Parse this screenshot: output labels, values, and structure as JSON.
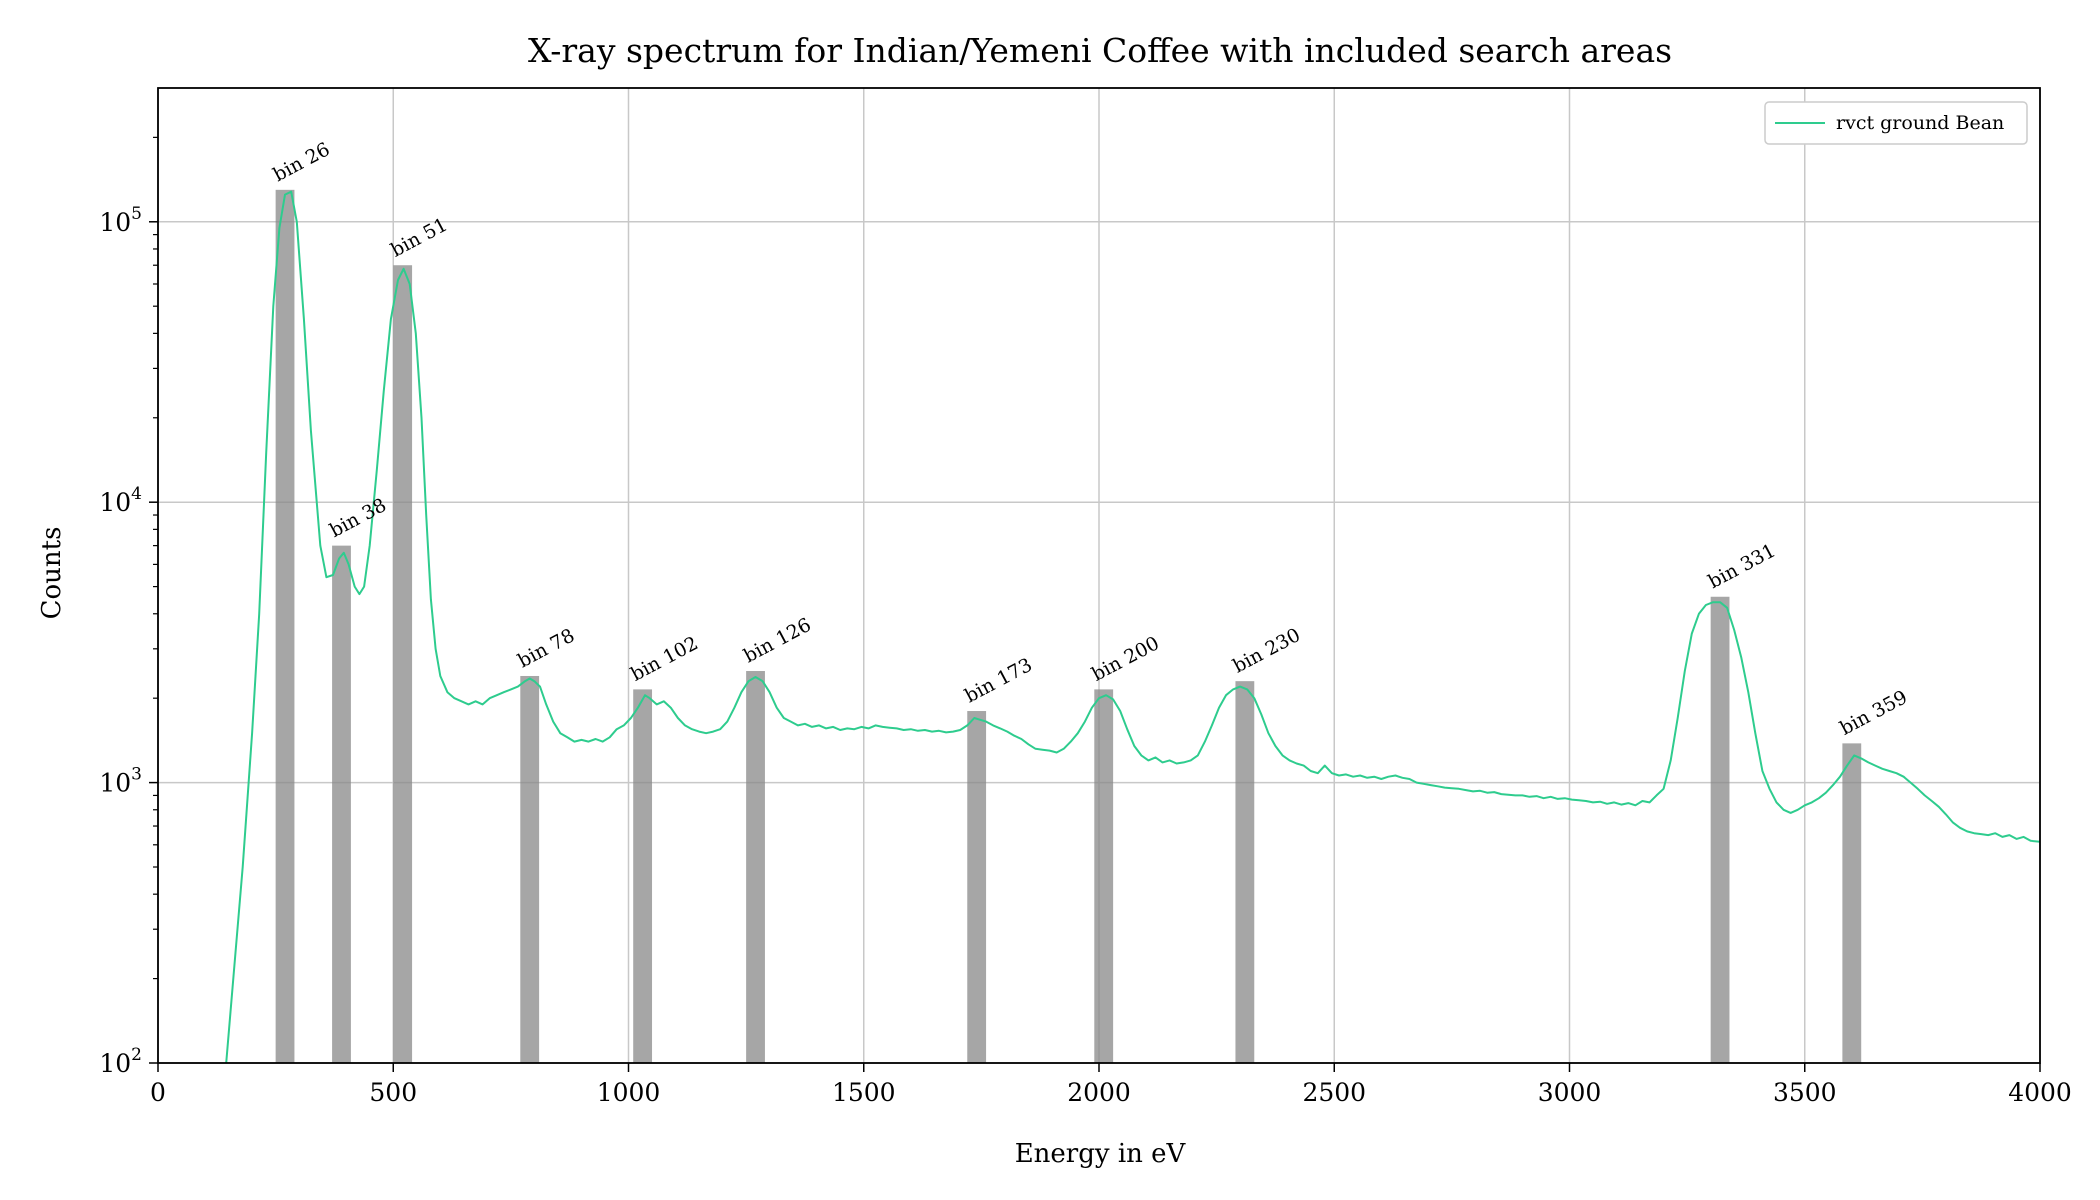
{
  "chart_data": {
    "type": "line",
    "title": "X-ray spectrum for Indian/Yemeni Coffee with included search areas",
    "xlabel": "Energy in eV",
    "ylabel": "Counts",
    "xlim": [
      0,
      4000
    ],
    "ylim": [
      100,
      300000
    ],
    "yscale": "log",
    "grid": true,
    "legend_position": "top-right",
    "x_ticks": [
      0,
      500,
      1000,
      1500,
      2000,
      2500,
      3000,
      3500,
      4000
    ],
    "y_ticks": [
      {
        "value": 100,
        "base": "10",
        "exp": "2"
      },
      {
        "value": 1000,
        "base": "10",
        "exp": "3"
      },
      {
        "value": 10000,
        "base": "10",
        "exp": "4"
      },
      {
        "value": 100000,
        "base": "10",
        "exp": "5"
      }
    ],
    "series": [
      {
        "name": "rvct ground Bean",
        "color": "#2ecc8e",
        "points": [
          [
            145,
            100
          ],
          [
            160,
            200
          ],
          [
            180,
            500
          ],
          [
            200,
            1500
          ],
          [
            215,
            4000
          ],
          [
            230,
            15000
          ],
          [
            245,
            50000
          ],
          [
            258,
            95000
          ],
          [
            270,
            125000
          ],
          [
            283,
            128000
          ],
          [
            295,
            100000
          ],
          [
            310,
            45000
          ],
          [
            325,
            18000
          ],
          [
            345,
            7000
          ],
          [
            358,
            5400
          ],
          [
            372,
            5500
          ],
          [
            385,
            6300
          ],
          [
            395,
            6600
          ],
          [
            405,
            6000
          ],
          [
            418,
            5000
          ],
          [
            428,
            4700
          ],
          [
            438,
            5000
          ],
          [
            450,
            7000
          ],
          [
            465,
            13000
          ],
          [
            480,
            25000
          ],
          [
            495,
            45000
          ],
          [
            510,
            62000
          ],
          [
            522,
            68000
          ],
          [
            535,
            60000
          ],
          [
            548,
            40000
          ],
          [
            560,
            20000
          ],
          [
            570,
            9000
          ],
          [
            580,
            4500
          ],
          [
            590,
            3000
          ],
          [
            600,
            2400
          ],
          [
            615,
            2100
          ],
          [
            630,
            2000
          ],
          [
            645,
            1950
          ],
          [
            660,
            1900
          ],
          [
            675,
            1950
          ],
          [
            690,
            1900
          ],
          [
            705,
            2000
          ],
          [
            720,
            2050
          ],
          [
            735,
            2100
          ],
          [
            750,
            2150
          ],
          [
            765,
            2200
          ],
          [
            780,
            2300
          ],
          [
            790,
            2350
          ],
          [
            800,
            2300
          ],
          [
            812,
            2200
          ],
          [
            825,
            1900
          ],
          [
            840,
            1650
          ],
          [
            855,
            1500
          ],
          [
            870,
            1450
          ],
          [
            885,
            1400
          ],
          [
            900,
            1420
          ],
          [
            915,
            1400
          ],
          [
            930,
            1430
          ],
          [
            945,
            1400
          ],
          [
            960,
            1450
          ],
          [
            975,
            1550
          ],
          [
            990,
            1600
          ],
          [
            1005,
            1700
          ],
          [
            1020,
            1850
          ],
          [
            1035,
            2050
          ],
          [
            1045,
            2000
          ],
          [
            1060,
            1900
          ],
          [
            1075,
            1950
          ],
          [
            1090,
            1850
          ],
          [
            1105,
            1700
          ],
          [
            1120,
            1600
          ],
          [
            1135,
            1550
          ],
          [
            1150,
            1520
          ],
          [
            1165,
            1500
          ],
          [
            1180,
            1520
          ],
          [
            1195,
            1550
          ],
          [
            1210,
            1650
          ],
          [
            1225,
            1850
          ],
          [
            1240,
            2100
          ],
          [
            1255,
            2300
          ],
          [
            1270,
            2380
          ],
          [
            1285,
            2300
          ],
          [
            1300,
            2100
          ],
          [
            1315,
            1850
          ],
          [
            1330,
            1700
          ],
          [
            1345,
            1650
          ],
          [
            1360,
            1600
          ],
          [
            1375,
            1620
          ],
          [
            1390,
            1580
          ],
          [
            1405,
            1600
          ],
          [
            1420,
            1560
          ],
          [
            1435,
            1580
          ],
          [
            1450,
            1540
          ],
          [
            1465,
            1560
          ],
          [
            1480,
            1550
          ],
          [
            1495,
            1580
          ],
          [
            1510,
            1560
          ],
          [
            1525,
            1600
          ],
          [
            1540,
            1580
          ],
          [
            1555,
            1570
          ],
          [
            1570,
            1560
          ],
          [
            1585,
            1540
          ],
          [
            1600,
            1550
          ],
          [
            1615,
            1530
          ],
          [
            1630,
            1540
          ],
          [
            1645,
            1520
          ],
          [
            1660,
            1530
          ],
          [
            1675,
            1510
          ],
          [
            1690,
            1520
          ],
          [
            1705,
            1540
          ],
          [
            1720,
            1600
          ],
          [
            1735,
            1700
          ],
          [
            1745,
            1680
          ],
          [
            1760,
            1650
          ],
          [
            1775,
            1600
          ],
          [
            1790,
            1560
          ],
          [
            1805,
            1520
          ],
          [
            1820,
            1470
          ],
          [
            1835,
            1430
          ],
          [
            1850,
            1370
          ],
          [
            1865,
            1320
          ],
          [
            1880,
            1310
          ],
          [
            1895,
            1300
          ],
          [
            1910,
            1280
          ],
          [
            1925,
            1320
          ],
          [
            1940,
            1400
          ],
          [
            1955,
            1500
          ],
          [
            1970,
            1650
          ],
          [
            1985,
            1850
          ],
          [
            2000,
            2000
          ],
          [
            2015,
            2050
          ],
          [
            2030,
            1980
          ],
          [
            2045,
            1800
          ],
          [
            2060,
            1550
          ],
          [
            2075,
            1350
          ],
          [
            2090,
            1250
          ],
          [
            2105,
            1200
          ],
          [
            2120,
            1230
          ],
          [
            2135,
            1180
          ],
          [
            2150,
            1200
          ],
          [
            2165,
            1170
          ],
          [
            2180,
            1180
          ],
          [
            2195,
            1200
          ],
          [
            2210,
            1250
          ],
          [
            2225,
            1400
          ],
          [
            2240,
            1600
          ],
          [
            2255,
            1850
          ],
          [
            2270,
            2050
          ],
          [
            2285,
            2150
          ],
          [
            2300,
            2200
          ],
          [
            2315,
            2150
          ],
          [
            2330,
            2000
          ],
          [
            2345,
            1750
          ],
          [
            2360,
            1500
          ],
          [
            2375,
            1350
          ],
          [
            2390,
            1250
          ],
          [
            2405,
            1200
          ],
          [
            2420,
            1170
          ],
          [
            2435,
            1150
          ],
          [
            2450,
            1100
          ],
          [
            2465,
            1080
          ],
          [
            2480,
            1150
          ],
          [
            2495,
            1080
          ],
          [
            2510,
            1060
          ],
          [
            2525,
            1070
          ],
          [
            2540,
            1050
          ],
          [
            2555,
            1060
          ],
          [
            2570,
            1040
          ],
          [
            2585,
            1050
          ],
          [
            2600,
            1030
          ],
          [
            2615,
            1050
          ],
          [
            2630,
            1060
          ],
          [
            2645,
            1040
          ],
          [
            2660,
            1030
          ],
          [
            2675,
            1000
          ],
          [
            2690,
            990
          ],
          [
            2705,
            980
          ],
          [
            2720,
            970
          ],
          [
            2735,
            960
          ],
          [
            2750,
            955
          ],
          [
            2765,
            950
          ],
          [
            2780,
            940
          ],
          [
            2795,
            930
          ],
          [
            2810,
            935
          ],
          [
            2825,
            920
          ],
          [
            2840,
            925
          ],
          [
            2855,
            910
          ],
          [
            2870,
            905
          ],
          [
            2885,
            900
          ],
          [
            2900,
            900
          ],
          [
            2915,
            890
          ],
          [
            2930,
            895
          ],
          [
            2945,
            880
          ],
          [
            2960,
            890
          ],
          [
            2975,
            875
          ],
          [
            2990,
            880
          ],
          [
            3005,
            870
          ],
          [
            3020,
            865
          ],
          [
            3035,
            860
          ],
          [
            3050,
            850
          ],
          [
            3065,
            855
          ],
          [
            3080,
            840
          ],
          [
            3095,
            850
          ],
          [
            3110,
            835
          ],
          [
            3125,
            845
          ],
          [
            3140,
            830
          ],
          [
            3155,
            860
          ],
          [
            3170,
            850
          ],
          [
            3185,
            900
          ],
          [
            3200,
            950
          ],
          [
            3215,
            1200
          ],
          [
            3230,
            1700
          ],
          [
            3245,
            2500
          ],
          [
            3260,
            3400
          ],
          [
            3275,
            4000
          ],
          [
            3290,
            4300
          ],
          [
            3305,
            4400
          ],
          [
            3320,
            4400
          ],
          [
            3335,
            4200
          ],
          [
            3350,
            3500
          ],
          [
            3365,
            2800
          ],
          [
            3380,
            2100
          ],
          [
            3395,
            1500
          ],
          [
            3410,
            1100
          ],
          [
            3425,
            950
          ],
          [
            3440,
            850
          ],
          [
            3455,
            800
          ],
          [
            3470,
            780
          ],
          [
            3485,
            800
          ],
          [
            3500,
            830
          ],
          [
            3515,
            850
          ],
          [
            3530,
            880
          ],
          [
            3545,
            920
          ],
          [
            3560,
            980
          ],
          [
            3575,
            1050
          ],
          [
            3590,
            1150
          ],
          [
            3605,
            1250
          ],
          [
            3620,
            1220
          ],
          [
            3635,
            1180
          ],
          [
            3650,
            1150
          ],
          [
            3665,
            1120
          ],
          [
            3680,
            1100
          ],
          [
            3695,
            1080
          ],
          [
            3710,
            1050
          ],
          [
            3725,
            1000
          ],
          [
            3740,
            950
          ],
          [
            3755,
            900
          ],
          [
            3770,
            860
          ],
          [
            3785,
            820
          ],
          [
            3800,
            770
          ],
          [
            3815,
            720
          ],
          [
            3830,
            690
          ],
          [
            3845,
            670
          ],
          [
            3860,
            660
          ],
          [
            3875,
            655
          ],
          [
            3890,
            650
          ],
          [
            3905,
            660
          ],
          [
            3920,
            640
          ],
          [
            3935,
            650
          ],
          [
            3950,
            630
          ],
          [
            3965,
            640
          ],
          [
            3980,
            620
          ],
          [
            4000,
            615
          ]
        ]
      }
    ],
    "search_areas": [
      {
        "label": "bin 26",
        "center": 270,
        "top": 130000
      },
      {
        "label": "bin 38",
        "center": 390,
        "top": 7000
      },
      {
        "label": "bin 51",
        "center": 520,
        "top": 70000
      },
      {
        "label": "bin 78",
        "center": 790,
        "top": 2400
      },
      {
        "label": "bin 102",
        "center": 1030,
        "top": 2150
      },
      {
        "label": "bin 126",
        "center": 1270,
        "top": 2500
      },
      {
        "label": "bin 173",
        "center": 1740,
        "top": 1800
      },
      {
        "label": "bin 200",
        "center": 2010,
        "top": 2150
      },
      {
        "label": "bin 230",
        "center": 2310,
        "top": 2300
      },
      {
        "label": "bin 331",
        "center": 3320,
        "top": 4600
      },
      {
        "label": "bin 359",
        "center": 3600,
        "top": 1380
      }
    ],
    "search_area_width": 40,
    "colors": {
      "series": "#2ecc8e",
      "search_area": "#888888",
      "grid": "#c8c8c8"
    }
  }
}
